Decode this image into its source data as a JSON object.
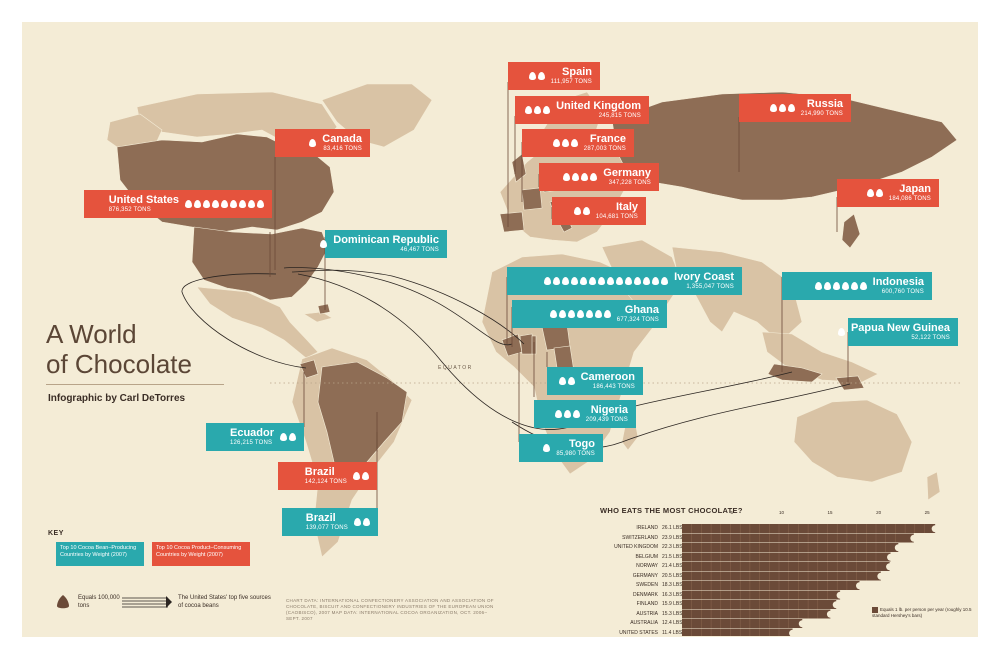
{
  "title_line1": "A World",
  "title_line2": "of Chocolate",
  "subtitle": "Infographic by Carl DeTorres",
  "equator_label": "EQUATOR",
  "key": {
    "heading": "KEY",
    "teal_label": "Top 10 Cocoa Bean–Producing Countries by Weight (2007)",
    "red_label": "Top 10 Cocoa Product–Consuming Countries by Weight (2007)",
    "drop_label": "Equals 100,000 tons",
    "arrow_label": "The United States' top five sources of cocoa beans"
  },
  "credit": "CHART DATA: INTERNATIONAL CONFECTIONERY ASSOCIATION AND ASSOCIATION OF CHOCOLATE, BISCUIT AND CONFECTIONERY INDUSTRIES OF THE EUROPEAN UNION (CAOBISCO), 2007 MAP DATA: INTERNATIONAL COCOA ORGANIZATION, OCT. 2006–SEPT. 2007",
  "consumers": [
    {
      "name": "Canada",
      "tons": "83,416 TONS",
      "drops": 1
    },
    {
      "name": "United States",
      "tons": "876,352 TONS",
      "drops": 9
    },
    {
      "name": "Spain",
      "tons": "111,957 TONS",
      "drops": 2
    },
    {
      "name": "United Kingdom",
      "tons": "245,815 TONS",
      "drops": 3
    },
    {
      "name": "France",
      "tons": "287,003 TONS",
      "drops": 3
    },
    {
      "name": "Germany",
      "tons": "347,228 TONS",
      "drops": 4
    },
    {
      "name": "Italy",
      "tons": "104,681 TONS",
      "drops": 2
    },
    {
      "name": "Russia",
      "tons": "214,990 TONS",
      "drops": 3
    },
    {
      "name": "Japan",
      "tons": "184,086 TONS",
      "drops": 2
    },
    {
      "name": "Brazil",
      "tons": "142,124 TONS",
      "drops": 2
    }
  ],
  "producers": [
    {
      "name": "Dominican Republic",
      "tons": "46,467 TONS",
      "drops": 1
    },
    {
      "name": "Ivory Coast",
      "tons": "1,355,047 TONS",
      "drops": 14
    },
    {
      "name": "Ghana",
      "tons": "677,324 TONS",
      "drops": 7
    },
    {
      "name": "Cameroon",
      "tons": "186,443 TONS",
      "drops": 2
    },
    {
      "name": "Nigeria",
      "tons": "209,439 TONS",
      "drops": 3
    },
    {
      "name": "Togo",
      "tons": "85,980 TONS",
      "drops": 1
    },
    {
      "name": "Indonesia",
      "tons": "600,760 TONS",
      "drops": 6
    },
    {
      "name": "Papua New Guinea",
      "tons": "52,122 TONS",
      "drops": 1
    },
    {
      "name": "Ecuador",
      "tons": "126,215 TONS",
      "drops": 2
    },
    {
      "name": "Brazil",
      "tons": "139,077 TONS",
      "drops": 2
    }
  ],
  "who_eats": {
    "heading": "WHO EATS THE MOST CHOCOLATE?",
    "legend": "Equals 1 lb. per person per year (roughly 10.5 standard Hershey's bars)",
    "ticks": [
      "5",
      "10",
      "15",
      "20",
      "25"
    ],
    "countries": [
      "IRELAND",
      "SWITZERLAND",
      "UNITED KINGDOM",
      "BELGIUM",
      "NORWAY",
      "GERMANY",
      "SWEDEN",
      "DENMARK",
      "FINLAND",
      "AUSTRIA",
      "AUSTRALIA",
      "UNITED STATES"
    ],
    "values_label": [
      "26.1 LBS.",
      "23.9 LBS.",
      "22.3 LBS.",
      "21.5 LBS.",
      "21.4 LBS.",
      "20.5 LBS.",
      "18.3 LBS.",
      "16.3 LBS.",
      "15.9 LBS.",
      "15.3 LBS.",
      "12.4 LBS.",
      "11.4 LBS."
    ],
    "values": [
      26.1,
      23.9,
      22.3,
      21.5,
      21.4,
      20.5,
      18.3,
      16.3,
      15.9,
      15.3,
      12.4,
      11.4
    ]
  },
  "colors": {
    "background": "#f4ecd6",
    "land_light": "#d9c3a5",
    "land_dark": "#8e6d55",
    "consumer": "#e5533d",
    "producer": "#2aa9ad",
    "chocolate": "#6b4a38"
  }
}
